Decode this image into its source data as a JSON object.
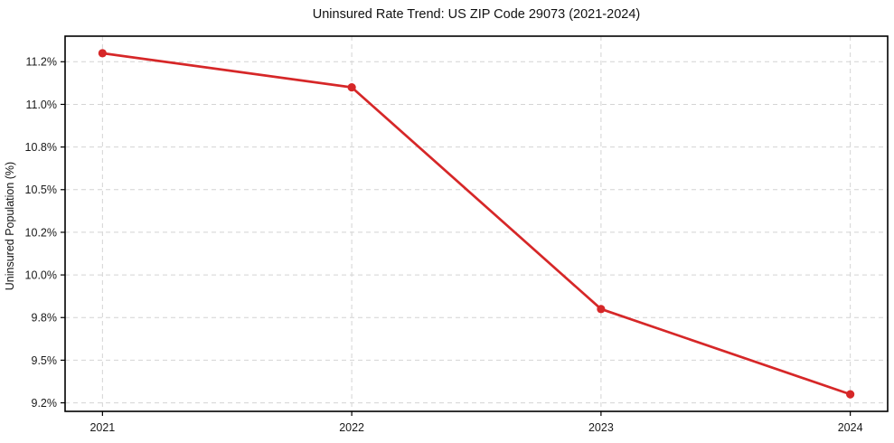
{
  "chart_data": {
    "type": "line",
    "title": "Uninsured Rate Trend: US ZIP Code 29073 (2021-2024)",
    "xlabel": "",
    "ylabel": "Uninsured Population (%)",
    "x": [
      2021,
      2022,
      2023,
      2024
    ],
    "values": [
      11.3,
      11.1,
      9.8,
      9.3
    ],
    "xticks": [
      {
        "v": 2021,
        "label": "2021"
      },
      {
        "v": 2022,
        "label": "2022"
      },
      {
        "v": 2023,
        "label": "2023"
      },
      {
        "v": 2024,
        "label": "2024"
      }
    ],
    "yticks": [
      {
        "v": 9.25,
        "label": "9.2%"
      },
      {
        "v": 9.5,
        "label": "9.5%"
      },
      {
        "v": 9.75,
        "label": "9.8%"
      },
      {
        "v": 10.0,
        "label": "10.0%"
      },
      {
        "v": 10.25,
        "label": "10.2%"
      },
      {
        "v": 10.5,
        "label": "10.5%"
      },
      {
        "v": 10.75,
        "label": "10.8%"
      },
      {
        "v": 11.0,
        "label": "11.0%"
      },
      {
        "v": 11.25,
        "label": "11.2%"
      }
    ],
    "xlim": [
      2020.85,
      2024.15
    ],
    "ylim": [
      9.2,
      11.4
    ],
    "grid": true,
    "legend": "none",
    "line_color": "#d62728",
    "grid_color": "#d4d4d4",
    "spine_color": "#000000",
    "marker": "circle"
  }
}
